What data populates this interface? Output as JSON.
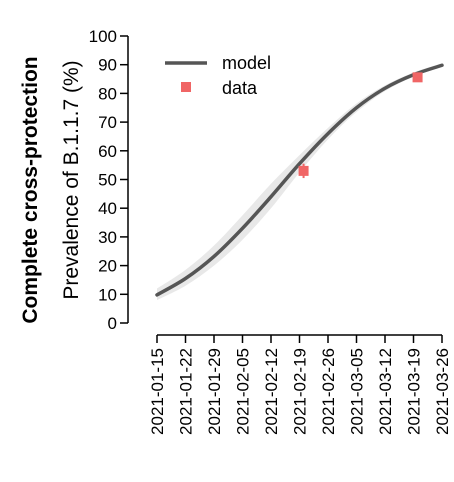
{
  "chart_data": {
    "type": "line",
    "side_title": "Complete cross-protection",
    "ylabel": "Prevalence of B.1.1.7 (%)",
    "xlabel": "",
    "ylim": [
      0,
      100
    ],
    "yticks": [
      0,
      10,
      20,
      30,
      40,
      50,
      60,
      70,
      80,
      90,
      100
    ],
    "xticks": [
      "2021-01-15",
      "2021-01-22",
      "2021-01-29",
      "2021-02-05",
      "2021-02-12",
      "2021-02-19",
      "2021-02-26",
      "2021-03-05",
      "2021-03-12",
      "2021-03-19",
      "2021-03-26"
    ],
    "xlim": [
      "2021-01-15",
      "2021-03-26"
    ],
    "grid": false,
    "legend_position": "top-left",
    "legend": [
      {
        "label": "model",
        "kind": "line"
      },
      {
        "label": "data",
        "kind": "marker"
      }
    ],
    "colors": {
      "model_line": "#555555",
      "ci_band": "#e8e8e8",
      "data_marker": "#f06565"
    },
    "series": [
      {
        "name": "model",
        "x": [
          "2021-01-15",
          "2021-01-22",
          "2021-01-29",
          "2021-02-05",
          "2021-02-12",
          "2021-02-19",
          "2021-02-26",
          "2021-03-05",
          "2021-03-12",
          "2021-03-19",
          "2021-03-26"
        ],
        "values": [
          9.8,
          15.5,
          23.2,
          33,
          44,
          55.5,
          66,
          75,
          81.8,
          86.5,
          89.8
        ],
        "ci_lower": [
          8,
          13,
          20,
          29,
          40,
          52.5,
          64,
          73.5,
          80.8,
          85.8,
          89.2
        ],
        "ci_upper": [
          12,
          18.5,
          27,
          37.5,
          48.5,
          58.5,
          68,
          76.5,
          82.8,
          87.3,
          90.5
        ]
      },
      {
        "name": "data",
        "x": [
          "2021-02-20",
          "2021-03-20"
        ],
        "values": [
          53,
          85.6
        ],
        "err_lower": [
          50.5,
          85
        ],
        "err_upper": [
          55.5,
          86.2
        ]
      }
    ]
  }
}
